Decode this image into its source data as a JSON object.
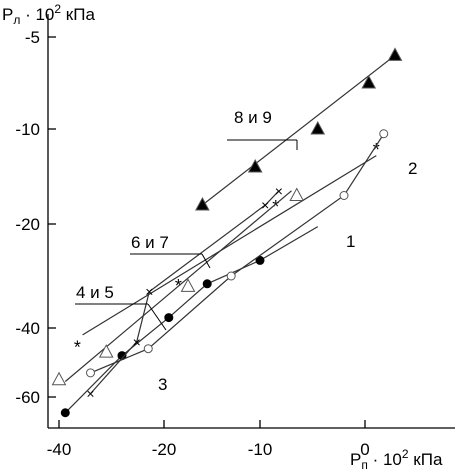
{
  "chart_data": {
    "type": "scatter",
    "ylabel_main": "P",
    "ylabel_sub": "л",
    "ylabel_rest": " · 10",
    "ylabel_exp": "2",
    "ylabel_unit": " кПа",
    "xlabel_main": "P",
    "xlabel_sub": "п",
    "xlabel_rest": " · 10",
    "xlabel_exp": "2",
    "xlabel_unit": " кПа",
    "x_ticks": [
      {
        "value": -40,
        "label": "-40"
      },
      {
        "value": -20,
        "label": "-20"
      },
      {
        "value": -10,
        "label": "-10"
      },
      {
        "value": 0,
        "label": "0"
      }
    ],
    "y_ticks": [
      {
        "value": -5,
        "label": "-5"
      },
      {
        "value": -10,
        "label": "-10"
      },
      {
        "value": -20,
        "label": "-20"
      },
      {
        "value": -40,
        "label": "-40"
      },
      {
        "value": -60,
        "label": "-60"
      }
    ],
    "series": [
      {
        "name": "8 и 9",
        "marker": "triangle-filled",
        "points": [
          [
            -16,
            -18
          ],
          [
            -10.5,
            -14
          ],
          [
            -4.5,
            -10
          ],
          [
            0.5,
            -7.5
          ],
          [
            4,
            -6
          ]
        ],
        "line": [
          [
            -16,
            -18
          ],
          [
            4,
            -6
          ]
        ]
      },
      {
        "name": "6 и 7",
        "marker": "star",
        "points": [
          [
            -36.5,
            -45
          ],
          [
            -18.5,
            -31.5
          ],
          [
            -8.5,
            -18
          ],
          [
            1.5,
            -12
          ]
        ],
        "line": [
          [
            -35.5,
            -42
          ],
          [
            1.5,
            -12.8
          ]
        ]
      },
      {
        "name": "4 и 5",
        "marker": "triangle-open",
        "points": [
          [
            -40,
            -55
          ],
          [
            -31,
            -47
          ],
          [
            -17.5,
            -32
          ],
          [
            -6.5,
            -17
          ]
        ],
        "line": [
          [
            -38.8,
            -55.5
          ],
          [
            -7,
            -16.5
          ]
        ]
      },
      {
        "name": "1",
        "marker": "circle-filled",
        "points": [
          [
            -38.8,
            -64.5
          ],
          [
            -28,
            -48
          ],
          [
            -19.5,
            -38
          ],
          [
            -15.5,
            -31.5
          ],
          [
            -10,
            -27
          ]
        ],
        "line": [
          [
            -38.8,
            -64.5
          ],
          [
            -28,
            -48
          ],
          [
            -19.5,
            -38
          ],
          [
            -15.5,
            -31.5
          ],
          [
            -10,
            -27
          ],
          [
            -4.5,
            -20.5
          ]
        ]
      },
      {
        "name": "2",
        "marker": "circle-open",
        "points": [
          [
            -34,
            -53
          ],
          [
            -23,
            -46
          ],
          [
            -13,
            -30
          ],
          [
            -2,
            -17
          ],
          [
            2.5,
            -10.5
          ]
        ],
        "line": [
          [
            -34,
            -53
          ],
          [
            -23,
            -46
          ],
          [
            -13,
            -30
          ],
          [
            -2,
            -17
          ],
          [
            2.5,
            -10.5
          ]
        ]
      },
      {
        "name": "3",
        "marker": "x",
        "points": [
          [
            -34,
            -59
          ],
          [
            -25.2,
            -44
          ],
          [
            -22.8,
            -33
          ],
          [
            -9.5,
            -18
          ],
          [
            -8.2,
            -16.5
          ]
        ],
        "line": [
          [
            -34,
            -59
          ],
          [
            -25.2,
            -44
          ],
          [
            -22.8,
            -33
          ],
          [
            -9.5,
            -18
          ],
          [
            -8.2,
            -16.5
          ]
        ]
      }
    ],
    "labels": {
      "s89": "8 и 9",
      "s67": "6 и 7",
      "s45": "4 и 5",
      "c1": "1",
      "c2": "2",
      "c3": "3"
    }
  }
}
